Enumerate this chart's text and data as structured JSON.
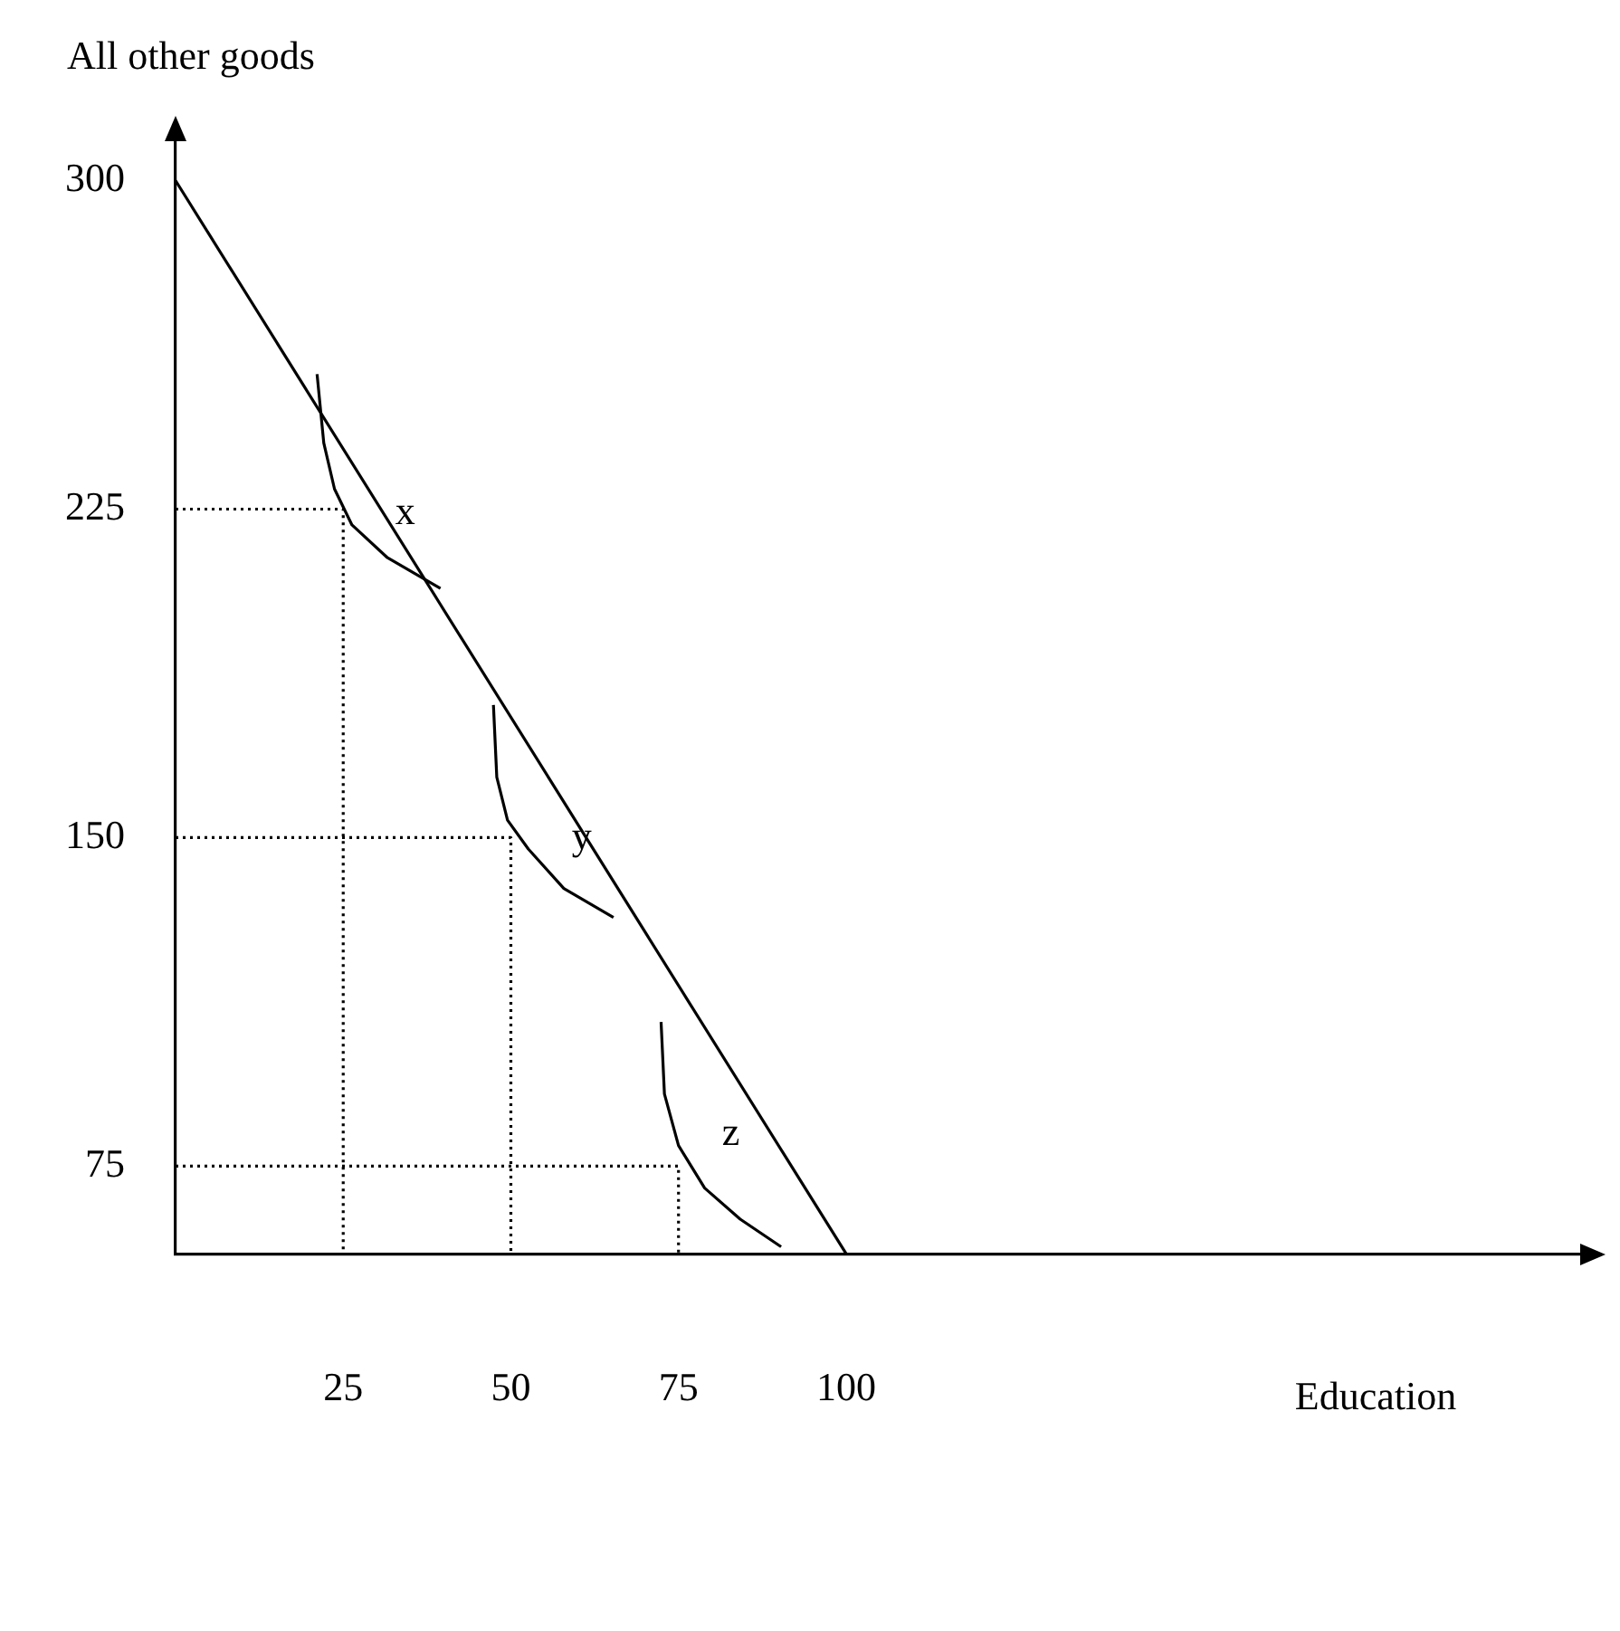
{
  "chart_data": {
    "type": "line",
    "xlabel": "Education",
    "ylabel": "All other goods",
    "xlim": [
      0,
      210
    ],
    "ylim": [
      55,
      309
    ],
    "xticks": [
      25,
      50,
      75,
      100
    ],
    "yticks": [
      75,
      150,
      225,
      300
    ],
    "grid": false,
    "marker": "none",
    "series": [
      {
        "color": "#000000",
        "x": [
          0,
          100
        ],
        "values": [
          300,
          55
        ]
      },
      {
        "color": "#000000",
        "x": [
          21.1,
          22.1,
          23.7,
          26.3,
          31.6,
          39.5
        ],
        "values": [
          255.8,
          240.1,
          229.6,
          221.4,
          213.9,
          206.9
        ]
      },
      {
        "color": "#000000",
        "x": [
          47.4,
          47.9,
          49.5,
          52.6,
          57.9,
          65.3
        ],
        "values": [
          180.3,
          163.8,
          154,
          147.4,
          138.4,
          131.8
        ]
      },
      {
        "color": "#000000",
        "x": [
          72.4,
          72.9,
          75,
          78.9,
          84.2,
          90.3
        ],
        "values": [
          107.9,
          91.5,
          79.7,
          70,
          62.9,
          56.6
        ]
      },
      {
        "color": "#000000",
        "line_style": "dotted",
        "x": [
          0,
          25,
          25
        ],
        "values": [
          225,
          225,
          55
        ]
      },
      {
        "color": "#000000",
        "line_style": "dotted",
        "x": [
          0,
          50,
          50
        ],
        "values": [
          150,
          150,
          55
        ]
      },
      {
        "color": "#000000",
        "line_style": "dotted",
        "x": [
          0,
          75,
          75
        ],
        "values": [
          75,
          75,
          55
        ]
      }
    ],
    "annotations": [
      {
        "text": "x",
        "x": 26.3,
        "y": 221.4
      },
      {
        "text": "y",
        "x": 52.6,
        "y": 147.4
      },
      {
        "text": "z",
        "x": 75,
        "y": 79.7
      }
    ]
  }
}
